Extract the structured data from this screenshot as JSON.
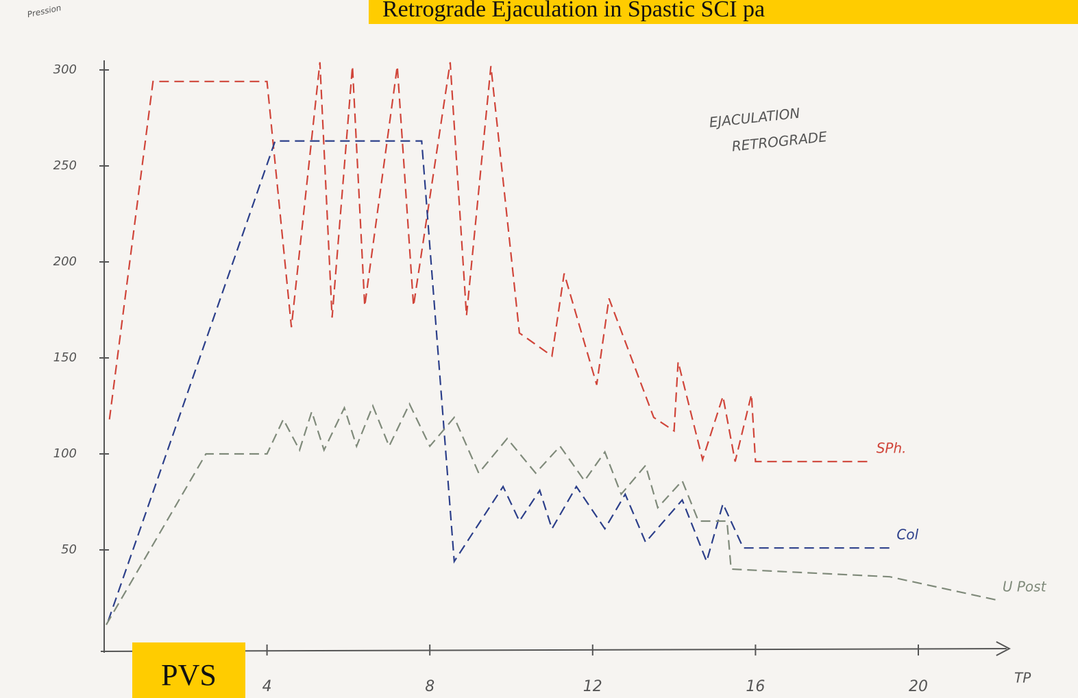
{
  "badge": "PVS",
  "chart_data": {
    "type": "line",
    "title": "Retrograde Ejaculation in Spastic SCI pa",
    "y_label": "Pression",
    "x_label": "TP",
    "annotations": [
      "EJACULATION",
      "RETROGRADE"
    ],
    "xlim": [
      0,
      22
    ],
    "ylim": [
      0,
      305
    ],
    "xticks": [
      4,
      8,
      12,
      16,
      20
    ],
    "yticks": [
      50,
      100,
      150,
      200,
      250,
      300
    ],
    "series": [
      {
        "name": "SPh.",
        "color": "#d0453a",
        "x": [
          0.13,
          1.2,
          4.0,
          4.6,
          5.3,
          5.6,
          6.1,
          6.4,
          7.2,
          7.6,
          8.5,
          8.9,
          9.5,
          10.2,
          11.0,
          11.3,
          12.1,
          12.4,
          13.5,
          14.0,
          14.1,
          14.7,
          15.2,
          15.5,
          15.9,
          16.0,
          18.8
        ],
        "values": [
          118,
          294,
          294,
          166,
          304,
          171,
          302,
          177,
          302,
          177,
          304,
          172,
          302,
          163,
          151,
          194,
          136,
          181,
          119,
          112,
          148,
          97,
          130,
          96,
          131,
          96,
          96
        ]
      },
      {
        "name": "Col",
        "color": "#2c3f8a",
        "x": [
          0.1,
          4.2,
          7.8,
          8.6,
          9.8,
          10.2,
          10.7,
          11.0,
          11.6,
          12.3,
          12.8,
          13.3,
          14.2,
          14.8,
          15.2,
          15.7,
          19.3
        ],
        "values": [
          13,
          263,
          263,
          44,
          83,
          65,
          81,
          61,
          83,
          61,
          79,
          54,
          76,
          44,
          74,
          51,
          51
        ]
      },
      {
        "name": "U Post",
        "color": "#7f8a7a",
        "x": [
          0.05,
          2.5,
          4.0,
          4.4,
          4.8,
          5.1,
          5.4,
          5.9,
          6.2,
          6.6,
          7.0,
          7.5,
          8.0,
          8.6,
          9.2,
          9.9,
          10.6,
          11.2,
          11.8,
          12.3,
          12.7,
          13.3,
          13.6,
          14.2,
          14.6,
          15.3,
          15.4,
          19.3,
          21.9
        ],
        "values": [
          11,
          100,
          100,
          118,
          102,
          122,
          102,
          124,
          104,
          125,
          104,
          126,
          104,
          119,
          90,
          108,
          90,
          104,
          86,
          101,
          79,
          94,
          72,
          86,
          65,
          65,
          40,
          36,
          24
        ]
      }
    ]
  }
}
